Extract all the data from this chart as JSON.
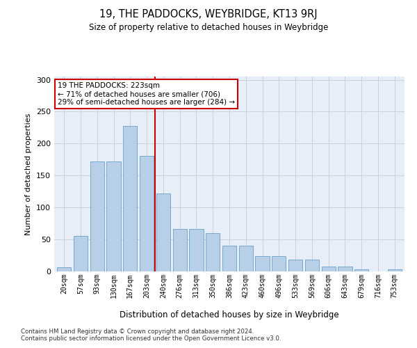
{
  "title": "19, THE PADDOCKS, WEYBRIDGE, KT13 9RJ",
  "subtitle": "Size of property relative to detached houses in Weybridge",
  "xlabel": "Distribution of detached houses by size in Weybridge",
  "ylabel": "Number of detached properties",
  "categories": [
    "20sqm",
    "57sqm",
    "93sqm",
    "130sqm",
    "167sqm",
    "203sqm",
    "240sqm",
    "276sqm",
    "313sqm",
    "350sqm",
    "386sqm",
    "423sqm",
    "460sqm",
    "496sqm",
    "533sqm",
    "569sqm",
    "606sqm",
    "643sqm",
    "679sqm",
    "716sqm",
    "753sqm"
  ],
  "values": [
    7,
    56,
    172,
    172,
    228,
    181,
    122,
    66,
    66,
    60,
    40,
    40,
    24,
    24,
    19,
    19,
    8,
    8,
    3,
    0,
    3
  ],
  "bar_color": "#b8cfe8",
  "bar_edge_color": "#6a9fc8",
  "vline_x_idx": 5.5,
  "vline_color": "#cc0000",
  "annotation_text": "19 THE PADDOCKS: 223sqm\n← 71% of detached houses are smaller (706)\n29% of semi-detached houses are larger (284) →",
  "annotation_box_color": "#ffffff",
  "annotation_box_edge": "#cc0000",
  "ylim": [
    0,
    305
  ],
  "yticks": [
    0,
    50,
    100,
    150,
    200,
    250,
    300
  ],
  "footer1": "Contains HM Land Registry data © Crown copyright and database right 2024.",
  "footer2": "Contains public sector information licensed under the Open Government Licence v3.0.",
  "bg_color": "#ffffff",
  "plot_bg_color": "#e8eef7",
  "grid_color": "#c8d0dc"
}
